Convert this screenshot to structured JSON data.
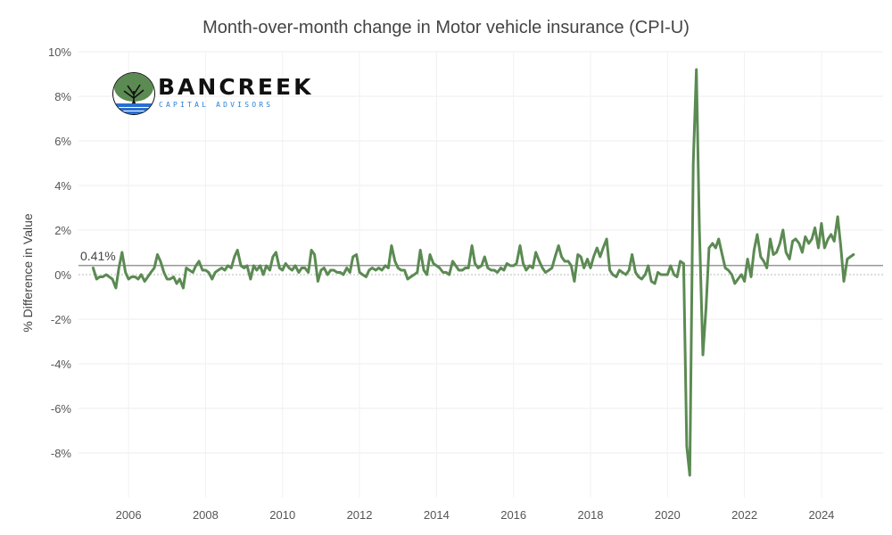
{
  "chart_data": {
    "type": "line",
    "title": "Month-over-month change in Motor vehicle insurance (CPI-U)",
    "ylabel": "% Difference in Value",
    "xlabel": "",
    "ylim": [
      -10,
      10
    ],
    "xlim": [
      2004.7,
      2025.6
    ],
    "y_ticks": [
      10,
      8,
      6,
      4,
      2,
      0,
      -2,
      -4,
      -6,
      -8
    ],
    "y_tick_labels": [
      "10%",
      "8%",
      "6%",
      "4%",
      "2%",
      "0%",
      "-2%",
      "-4%",
      "-6%",
      "-8%"
    ],
    "x_ticks": [
      2006,
      2008,
      2010,
      2012,
      2014,
      2016,
      2018,
      2020,
      2022,
      2024
    ],
    "x_tick_labels": [
      "2006",
      "2008",
      "2010",
      "2012",
      "2014",
      "2016",
      "2018",
      "2020",
      "2022",
      "2024"
    ],
    "reference_line": {
      "value": 0.41,
      "label": "0.41%"
    },
    "grid": true,
    "line_color": "#5b8a52",
    "series": [
      {
        "values": [
          [
            2005.08,
            0.3
          ],
          [
            2005.17,
            -0.2
          ],
          [
            2005.25,
            -0.1
          ],
          [
            2005.33,
            -0.1
          ],
          [
            2005.42,
            0.0
          ],
          [
            2005.5,
            -0.1
          ],
          [
            2005.58,
            -0.2
          ],
          [
            2005.67,
            -0.6
          ],
          [
            2005.75,
            0.3
          ],
          [
            2005.83,
            1.0
          ],
          [
            2005.92,
            0.1
          ],
          [
            2006.0,
            -0.2
          ],
          [
            2006.08,
            -0.1
          ],
          [
            2006.17,
            -0.1
          ],
          [
            2006.25,
            -0.2
          ],
          [
            2006.33,
            0.0
          ],
          [
            2006.42,
            -0.3
          ],
          [
            2006.5,
            -0.1
          ],
          [
            2006.58,
            0.1
          ],
          [
            2006.67,
            0.3
          ],
          [
            2006.75,
            0.9
          ],
          [
            2006.83,
            0.6
          ],
          [
            2006.92,
            0.1
          ],
          [
            2007.0,
            -0.2
          ],
          [
            2007.08,
            -0.2
          ],
          [
            2007.17,
            -0.1
          ],
          [
            2007.25,
            -0.4
          ],
          [
            2007.33,
            -0.2
          ],
          [
            2007.42,
            -0.6
          ],
          [
            2007.5,
            0.3
          ],
          [
            2007.58,
            0.2
          ],
          [
            2007.67,
            0.1
          ],
          [
            2007.75,
            0.4
          ],
          [
            2007.83,
            0.6
          ],
          [
            2007.92,
            0.2
          ],
          [
            2008.0,
            0.2
          ],
          [
            2008.08,
            0.1
          ],
          [
            2008.17,
            -0.2
          ],
          [
            2008.25,
            0.1
          ],
          [
            2008.33,
            0.2
          ],
          [
            2008.42,
            0.3
          ],
          [
            2008.5,
            0.2
          ],
          [
            2008.58,
            0.4
          ],
          [
            2008.67,
            0.3
          ],
          [
            2008.75,
            0.8
          ],
          [
            2008.83,
            1.1
          ],
          [
            2008.92,
            0.4
          ],
          [
            2009.0,
            0.3
          ],
          [
            2009.08,
            0.4
          ],
          [
            2009.17,
            -0.2
          ],
          [
            2009.25,
            0.4
          ],
          [
            2009.33,
            0.2
          ],
          [
            2009.42,
            0.4
          ],
          [
            2009.5,
            0.0
          ],
          [
            2009.58,
            0.4
          ],
          [
            2009.67,
            0.2
          ],
          [
            2009.75,
            0.8
          ],
          [
            2009.83,
            1.0
          ],
          [
            2009.92,
            0.3
          ],
          [
            2010.0,
            0.2
          ],
          [
            2010.08,
            0.5
          ],
          [
            2010.17,
            0.3
          ],
          [
            2010.25,
            0.2
          ],
          [
            2010.33,
            0.4
          ],
          [
            2010.42,
            0.1
          ],
          [
            2010.5,
            0.3
          ],
          [
            2010.58,
            0.3
          ],
          [
            2010.67,
            0.1
          ],
          [
            2010.75,
            1.1
          ],
          [
            2010.83,
            0.9
          ],
          [
            2010.92,
            -0.3
          ],
          [
            2011.0,
            0.2
          ],
          [
            2011.08,
            0.3
          ],
          [
            2011.17,
            0.0
          ],
          [
            2011.25,
            0.2
          ],
          [
            2011.33,
            0.2
          ],
          [
            2011.42,
            0.1
          ],
          [
            2011.5,
            0.1
          ],
          [
            2011.58,
            0.0
          ],
          [
            2011.67,
            0.3
          ],
          [
            2011.75,
            0.1
          ],
          [
            2011.83,
            0.8
          ],
          [
            2011.92,
            0.9
          ],
          [
            2012.0,
            0.1
          ],
          [
            2012.08,
            0.0
          ],
          [
            2012.17,
            -0.1
          ],
          [
            2012.25,
            0.2
          ],
          [
            2012.33,
            0.3
          ],
          [
            2012.42,
            0.2
          ],
          [
            2012.5,
            0.3
          ],
          [
            2012.58,
            0.2
          ],
          [
            2012.67,
            0.4
          ],
          [
            2012.75,
            0.3
          ],
          [
            2012.83,
            1.3
          ],
          [
            2012.92,
            0.6
          ],
          [
            2013.0,
            0.3
          ],
          [
            2013.08,
            0.2
          ],
          [
            2013.17,
            0.2
          ],
          [
            2013.25,
            -0.2
          ],
          [
            2013.33,
            -0.1
          ],
          [
            2013.42,
            0.0
          ],
          [
            2013.5,
            0.1
          ],
          [
            2013.58,
            1.1
          ],
          [
            2013.67,
            0.2
          ],
          [
            2013.75,
            0.0
          ],
          [
            2013.83,
            0.9
          ],
          [
            2013.92,
            0.5
          ],
          [
            2014.0,
            0.4
          ],
          [
            2014.08,
            0.3
          ],
          [
            2014.17,
            0.1
          ],
          [
            2014.25,
            0.1
          ],
          [
            2014.33,
            0.0
          ],
          [
            2014.42,
            0.6
          ],
          [
            2014.5,
            0.4
          ],
          [
            2014.58,
            0.2
          ],
          [
            2014.67,
            0.2
          ],
          [
            2014.75,
            0.3
          ],
          [
            2014.83,
            0.3
          ],
          [
            2014.92,
            1.3
          ],
          [
            2015.0,
            0.5
          ],
          [
            2015.08,
            0.3
          ],
          [
            2015.17,
            0.4
          ],
          [
            2015.25,
            0.8
          ],
          [
            2015.33,
            0.3
          ],
          [
            2015.42,
            0.2
          ],
          [
            2015.5,
            0.2
          ],
          [
            2015.58,
            0.1
          ],
          [
            2015.67,
            0.3
          ],
          [
            2015.75,
            0.2
          ],
          [
            2015.83,
            0.5
          ],
          [
            2015.92,
            0.4
          ],
          [
            2016.0,
            0.4
          ],
          [
            2016.08,
            0.5
          ],
          [
            2016.17,
            1.3
          ],
          [
            2016.25,
            0.5
          ],
          [
            2016.33,
            0.2
          ],
          [
            2016.42,
            0.4
          ],
          [
            2016.5,
            0.3
          ],
          [
            2016.58,
            1.0
          ],
          [
            2016.67,
            0.6
          ],
          [
            2016.75,
            0.3
          ],
          [
            2016.83,
            0.1
          ],
          [
            2016.92,
            0.2
          ],
          [
            2017.0,
            0.3
          ],
          [
            2017.08,
            0.8
          ],
          [
            2017.17,
            1.3
          ],
          [
            2017.25,
            0.8
          ],
          [
            2017.33,
            0.6
          ],
          [
            2017.42,
            0.6
          ],
          [
            2017.5,
            0.4
          ],
          [
            2017.58,
            -0.3
          ],
          [
            2017.67,
            0.9
          ],
          [
            2017.75,
            0.8
          ],
          [
            2017.83,
            0.3
          ],
          [
            2017.92,
            0.7
          ],
          [
            2018.0,
            0.3
          ],
          [
            2018.08,
            0.8
          ],
          [
            2018.17,
            1.2
          ],
          [
            2018.25,
            0.8
          ],
          [
            2018.33,
            1.2
          ],
          [
            2018.42,
            1.6
          ],
          [
            2018.5,
            0.2
          ],
          [
            2018.58,
            0.0
          ],
          [
            2018.67,
            -0.1
          ],
          [
            2018.75,
            0.2
          ],
          [
            2018.83,
            0.1
          ],
          [
            2018.92,
            0.0
          ],
          [
            2019.0,
            0.2
          ],
          [
            2019.08,
            0.9
          ],
          [
            2019.17,
            0.1
          ],
          [
            2019.25,
            -0.1
          ],
          [
            2019.33,
            -0.2
          ],
          [
            2019.42,
            0.0
          ],
          [
            2019.5,
            0.4
          ],
          [
            2019.58,
            -0.3
          ],
          [
            2019.67,
            -0.4
          ],
          [
            2019.75,
            0.1
          ],
          [
            2019.83,
            0.0
          ],
          [
            2019.92,
            0.0
          ],
          [
            2020.0,
            0.0
          ],
          [
            2020.08,
            0.4
          ],
          [
            2020.17,
            0.0
          ],
          [
            2020.25,
            -0.1
          ],
          [
            2020.33,
            0.6
          ],
          [
            2020.42,
            0.5
          ],
          [
            2020.5,
            -7.7
          ],
          [
            2020.58,
            -9.0
          ],
          [
            2020.67,
            5.0
          ],
          [
            2020.75,
            9.2
          ],
          [
            2020.83,
            2.0
          ],
          [
            2020.92,
            -3.6
          ],
          [
            2021.0,
            -1.5
          ],
          [
            2021.08,
            1.2
          ],
          [
            2021.17,
            1.4
          ],
          [
            2021.25,
            1.2
          ],
          [
            2021.33,
            1.6
          ],
          [
            2021.42,
            0.9
          ],
          [
            2021.5,
            0.3
          ],
          [
            2021.58,
            0.2
          ],
          [
            2021.67,
            0.0
          ],
          [
            2021.75,
            -0.4
          ],
          [
            2021.83,
            -0.2
          ],
          [
            2021.92,
            0.0
          ],
          [
            2022.0,
            -0.3
          ],
          [
            2022.08,
            0.7
          ],
          [
            2022.17,
            -0.1
          ],
          [
            2022.25,
            1.1
          ],
          [
            2022.33,
            1.8
          ],
          [
            2022.42,
            0.8
          ],
          [
            2022.5,
            0.6
          ],
          [
            2022.58,
            0.3
          ],
          [
            2022.67,
            1.6
          ],
          [
            2022.75,
            0.9
          ],
          [
            2022.83,
            1.0
          ],
          [
            2022.92,
            1.4
          ],
          [
            2023.0,
            2.0
          ],
          [
            2023.08,
            1.0
          ],
          [
            2023.17,
            0.7
          ],
          [
            2023.25,
            1.5
          ],
          [
            2023.33,
            1.6
          ],
          [
            2023.42,
            1.4
          ],
          [
            2023.5,
            1.0
          ],
          [
            2023.58,
            1.7
          ],
          [
            2023.67,
            1.4
          ],
          [
            2023.75,
            1.6
          ],
          [
            2023.83,
            2.1
          ],
          [
            2023.92,
            1.2
          ],
          [
            2024.0,
            2.3
          ],
          [
            2024.08,
            1.2
          ],
          [
            2024.17,
            1.6
          ],
          [
            2024.25,
            1.8
          ],
          [
            2024.33,
            1.5
          ],
          [
            2024.42,
            2.6
          ],
          [
            2024.5,
            1.3
          ],
          [
            2024.58,
            -0.3
          ],
          [
            2024.67,
            0.7
          ],
          [
            2024.75,
            0.8
          ],
          [
            2024.83,
            0.9
          ]
        ]
      }
    ]
  },
  "logo": {
    "name": "BANCREEK",
    "tagline": "CAPITAL ADVISORS"
  }
}
